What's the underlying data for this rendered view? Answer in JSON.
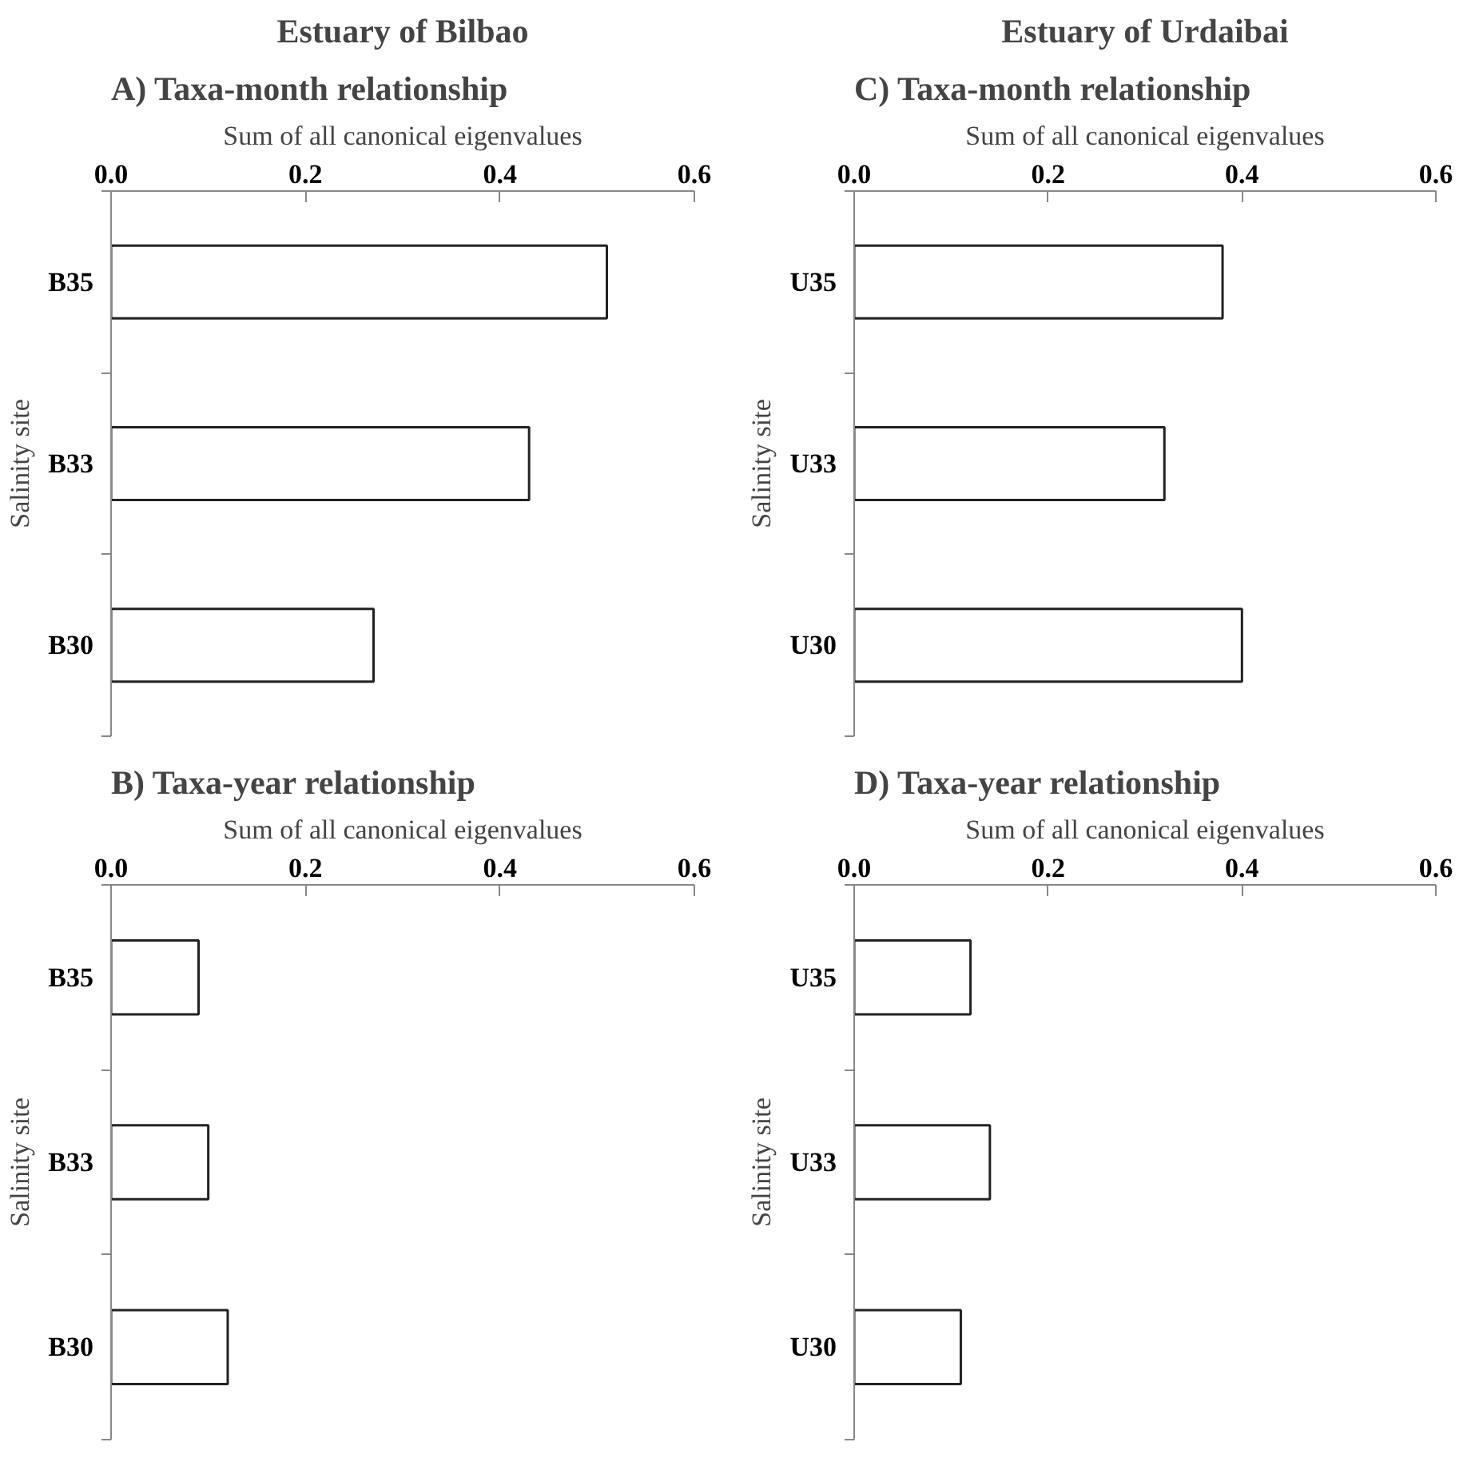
{
  "chart_data": [
    {
      "type": "bar",
      "orientation": "horizontal",
      "title": "Estuary of Bilbao",
      "subtitle": "A) Taxa-month relationship",
      "xlabel": "Sum of all canonical eigenvalues",
      "ylabel": "Salinity site",
      "categories": [
        "B35",
        "B33",
        "B30"
      ],
      "values": [
        0.51,
        0.43,
        0.27
      ],
      "color": "#ffffff",
      "xlim": [
        0,
        0.6
      ],
      "xticks": [
        {
          "value": 0,
          "label": "0.0"
        },
        {
          "value": 0.2,
          "label": "0.2"
        },
        {
          "value": 0.4,
          "label": "0.4"
        },
        {
          "value": 0.6,
          "label": "0.6"
        }
      ]
    },
    {
      "type": "bar",
      "orientation": "horizontal",
      "title": "Estuary of Urdaibai",
      "subtitle": "C) Taxa-month relationship",
      "xlabel": "Sum of all canonical eigenvalues",
      "ylabel": "Salinity site",
      "categories": [
        "U35",
        "U33",
        "U30"
      ],
      "values": [
        0.38,
        0.32,
        0.4
      ],
      "color": "#ffffff",
      "xlim": [
        0,
        0.6
      ],
      "xticks": [
        {
          "value": 0,
          "label": "0.0"
        },
        {
          "value": 0.2,
          "label": "0.2"
        },
        {
          "value": 0.4,
          "label": "0.4"
        },
        {
          "value": 0.6,
          "label": "0.6"
        }
      ]
    },
    {
      "type": "bar",
      "orientation": "horizontal",
      "title": "B) Taxa-year relationship",
      "xlabel": "Sum of all canonical eigenvalues",
      "ylabel": "Salinity site",
      "categories": [
        "B35",
        "B33",
        "B30"
      ],
      "values": [
        0.09,
        0.1,
        0.12
      ],
      "color": "#ffffff",
      "xlim": [
        0,
        0.6
      ],
      "xticks": [
        {
          "value": 0,
          "label": "0.0"
        },
        {
          "value": 0.2,
          "label": "0.2"
        },
        {
          "value": 0.4,
          "label": "0.4"
        },
        {
          "value": 0.6,
          "label": "0.6"
        }
      ]
    },
    {
      "type": "bar",
      "orientation": "horizontal",
      "title": "D) Taxa-year relationship",
      "xlabel": "Sum of all canonical eigenvalues",
      "ylabel": "Salinity site",
      "categories": [
        "U35",
        "U33",
        "U30"
      ],
      "values": [
        0.12,
        0.14,
        0.11
      ],
      "color": "#ffffff",
      "xlim": [
        0,
        0.6
      ],
      "xticks": [
        {
          "value": 0,
          "label": "0.0"
        },
        {
          "value": 0.2,
          "label": "0.2"
        },
        {
          "value": 0.4,
          "label": "0.4"
        },
        {
          "value": 0.6,
          "label": "0.6"
        }
      ]
    }
  ]
}
